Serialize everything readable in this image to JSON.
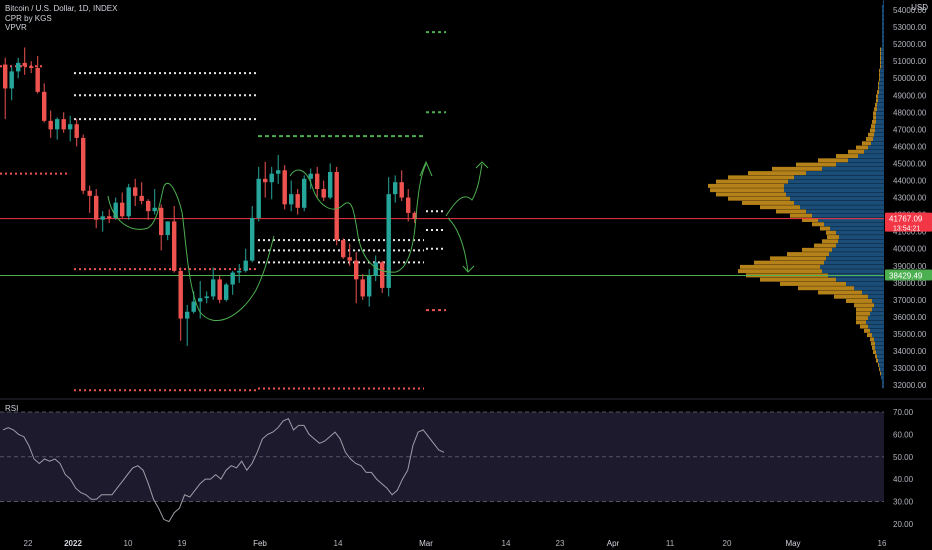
{
  "legend": {
    "symbol": "Bitcoin / U.S. Dollar, 1D, INDEX",
    "indicator1": "CPR by KGS",
    "indicator2": "VPVR"
  },
  "rsi_label": "RSI",
  "currency": "USD",
  "colors": {
    "bull": "#26a69a",
    "bear": "#ef5350",
    "red_line": "#f23645",
    "green_line": "#4caf50",
    "vp_blue": "#1e5a8c",
    "vp_orange": "#c98f1c",
    "rsi_band": "#1e1a2e",
    "drawing": "#4caf50"
  },
  "chart_data": {
    "type": "candlestick",
    "title": "Bitcoin / U.S. Dollar, 1D, INDEX",
    "price_axis": {
      "ticks": [
        "54000.00",
        "53000.00",
        "52000.00",
        "51000.00",
        "50000.00",
        "49000.00",
        "48000.00",
        "47000.00",
        "46000.00",
        "45000.00",
        "44000.00",
        "43000.00",
        "42000.00",
        "41000.00",
        "40000.00",
        "39000.00",
        "38000.00",
        "37000.00",
        "36000.00",
        "35000.00",
        "34000.00",
        "33000.00",
        "32000.00"
      ],
      "range": [
        31500,
        54500
      ]
    },
    "time_axis": {
      "labels": [
        "22",
        "2022",
        "10",
        "19",
        "Feb",
        "14",
        "Mar",
        "14",
        "23",
        "Apr",
        "11",
        "20",
        "May",
        "16"
      ]
    },
    "price_labels": [
      {
        "value": "41767.09",
        "sub": "13:54:21",
        "color": "#f23645"
      },
      {
        "value": "38429.49",
        "color": "#4caf50"
      }
    ],
    "horizontal_lines": [
      {
        "price": 41767,
        "color": "#f23645"
      },
      {
        "price": 38429,
        "color": "#4caf50"
      }
    ],
    "candles": [
      [
        50800,
        51200,
        47600,
        49400
      ],
      [
        49400,
        50700,
        48700,
        50400
      ],
      [
        50400,
        51200,
        50000,
        50900
      ],
      [
        50900,
        51800,
        50200,
        50700
      ],
      [
        50700,
        51000,
        50300,
        50600
      ],
      [
        50600,
        51300,
        49100,
        49200
      ],
      [
        49200,
        49700,
        47400,
        47500
      ],
      [
        47500,
        48100,
        46500,
        47000
      ],
      [
        47000,
        47700,
        46400,
        47600
      ],
      [
        47600,
        48000,
        46800,
        47000
      ],
      [
        47000,
        47800,
        46300,
        47300
      ],
      [
        47300,
        47600,
        46000,
        46500
      ],
      [
        46500,
        46700,
        43200,
        43400
      ],
      [
        43400,
        43700,
        42100,
        43100
      ],
      [
        43100,
        43500,
        41200,
        41700
      ],
      [
        41700,
        42200,
        41000,
        41900
      ],
      [
        41900,
        42300,
        41500,
        41800
      ],
      [
        41800,
        43000,
        41700,
        42700
      ],
      [
        42700,
        43300,
        41800,
        41900
      ],
      [
        41900,
        43800,
        41700,
        43600
      ],
      [
        43600,
        44100,
        42500,
        43100
      ],
      [
        43100,
        43900,
        42600,
        42800
      ],
      [
        42800,
        42900,
        41700,
        42200
      ],
      [
        42200,
        43500,
        42000,
        42400
      ],
      [
        42400,
        42600,
        39900,
        40800
      ],
      [
        40800,
        41600,
        40500,
        41600
      ],
      [
        41600,
        42500,
        38600,
        38700
      ],
      [
        38700,
        38900,
        34600,
        35900
      ],
      [
        35900,
        36700,
        34300,
        36300
      ],
      [
        36300,
        37500,
        36200,
        36900
      ],
      [
        36900,
        38100,
        35900,
        37100
      ],
      [
        37100,
        37500,
        36800,
        37200
      ],
      [
        37200,
        38900,
        37000,
        38200
      ],
      [
        38200,
        38400,
        36800,
        37000
      ],
      [
        37000,
        38000,
        36900,
        37900
      ],
      [
        37900,
        38700,
        37300,
        38600
      ],
      [
        38600,
        39100,
        38000,
        38700
      ],
      [
        38700,
        40000,
        38600,
        39300
      ],
      [
        39300,
        42500,
        39200,
        41800
      ],
      [
        41800,
        44800,
        41600,
        44100
      ],
      [
        44100,
        45100,
        43000,
        43900
      ],
      [
        43900,
        44800,
        42900,
        44400
      ],
      [
        44400,
        45500,
        43800,
        44600
      ],
      [
        44600,
        44900,
        42300,
        42600
      ],
      [
        42600,
        44000,
        42200,
        43200
      ],
      [
        43200,
        43500,
        42000,
        42400
      ],
      [
        42400,
        44300,
        42200,
        44100
      ],
      [
        44100,
        44700,
        43500,
        44400
      ],
      [
        44400,
        44800,
        43000,
        43500
      ],
      [
        43500,
        44000,
        42800,
        43000
      ],
      [
        43000,
        45000,
        42900,
        44500
      ],
      [
        44500,
        44800,
        40200,
        40500
      ],
      [
        40500,
        40600,
        39400,
        39500
      ],
      [
        39500,
        40300,
        39000,
        39300
      ],
      [
        39300,
        39800,
        36800,
        38200
      ],
      [
        38200,
        38500,
        37000,
        37200
      ],
      [
        37200,
        38800,
        36600,
        38400
      ],
      [
        38400,
        39600,
        38100,
        39200
      ],
      [
        39200,
        39300,
        37400,
        37700
      ],
      [
        37700,
        44200,
        37200,
        43200
      ],
      [
        43200,
        44300,
        42700,
        43900
      ],
      [
        43900,
        44600,
        42800,
        43000
      ],
      [
        43000,
        43500,
        41600,
        42100
      ],
      [
        42100,
        42200,
        41500,
        41767
      ]
    ],
    "volume_profile_bins": {
      "price_start": 31800,
      "price_step": 250,
      "blue": [
        2,
        2,
        3,
        3,
        4,
        5,
        6,
        7,
        8,
        9,
        9,
        10,
        12,
        14,
        16,
        18,
        16,
        14,
        12,
        10,
        12,
        16,
        22,
        30,
        38,
        48,
        56,
        62,
        64,
        60,
        58,
        55,
        52,
        48,
        46,
        45,
        48,
        54,
        60,
        66,
        72,
        78,
        84,
        90,
        94,
        98,
        100,
        100,
        96,
        90,
        78,
        62,
        48,
        36,
        26,
        20,
        16,
        13,
        11,
        10,
        9,
        9,
        8,
        8,
        8,
        7,
        7,
        6,
        6,
        5,
        5,
        5,
        4,
        4,
        4,
        3,
        3,
        3,
        3,
        3,
        2,
        2,
        2,
        2,
        2,
        2,
        2,
        2,
        2,
        2,
        1,
        1
      ],
      "orange": [
        0,
        0,
        0,
        1,
        1,
        1,
        2,
        2,
        3,
        3,
        4,
        4,
        5,
        6,
        8,
        10,
        12,
        14,
        16,
        20,
        26,
        34,
        44,
        56,
        66,
        76,
        82,
        84,
        80,
        70,
        56,
        42,
        30,
        22,
        16,
        12,
        10,
        10,
        12,
        16,
        22,
        30,
        40,
        52,
        62,
        70,
        74,
        76,
        72,
        66,
        58,
        50,
        40,
        30,
        22,
        16,
        12,
        9,
        7,
        6,
        5,
        4,
        4,
        3,
        3,
        3,
        2,
        2,
        2,
        2,
        1,
        1,
        1,
        1,
        1,
        1,
        1,
        1,
        1,
        1,
        0,
        0,
        0,
        0,
        0,
        0,
        0,
        0,
        0,
        0,
        0,
        0
      ]
    },
    "rsi": {
      "axis_ticks": [
        "70.00",
        "60.00",
        "50.00",
        "40.00",
        "30.00",
        "20.00"
      ],
      "range": [
        18,
        73
      ],
      "band": [
        30,
        70
      ],
      "mid": 50,
      "values": [
        62,
        63,
        62,
        60,
        59,
        55,
        49,
        47,
        49,
        48,
        49,
        47,
        42,
        40,
        36,
        34,
        33,
        31,
        31,
        33,
        33,
        33,
        36,
        39,
        42,
        45,
        46,
        44,
        38,
        31,
        27,
        22,
        21,
        25,
        27,
        33,
        32,
        35,
        38,
        40,
        40,
        42,
        40,
        44,
        46,
        45,
        48,
        44,
        47,
        52,
        58,
        60,
        61,
        63,
        66,
        67,
        62,
        64,
        64,
        60,
        58,
        56,
        57,
        59,
        61,
        58,
        52,
        49,
        47,
        46,
        43,
        43,
        40,
        38,
        36,
        33,
        35,
        40,
        44,
        55,
        61,
        62,
        59,
        56,
        53,
        52
      ]
    }
  }
}
